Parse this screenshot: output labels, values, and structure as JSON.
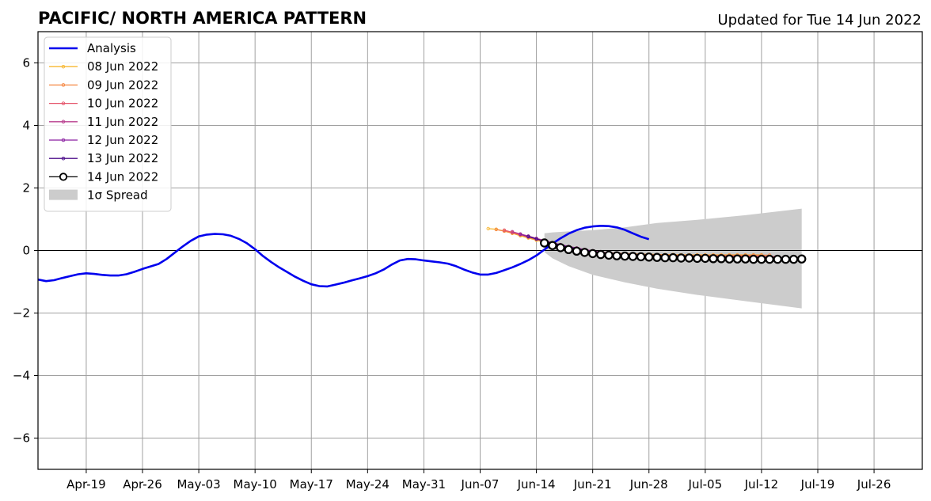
{
  "chart_data": {
    "type": "line",
    "title": "PACIFIC/ NORTH AMERICA PATTERN",
    "subtitle": "Updated for Tue 14 Jun 2022",
    "xlabel": "",
    "ylabel": "",
    "x_range": [
      "2022-04-13",
      "2022-08-01"
    ],
    "ylim": [
      -7,
      7
    ],
    "grid": true,
    "legend_position": "top-left",
    "xticks": [
      {
        "date": "2022-04-19",
        "label": "Apr-19"
      },
      {
        "date": "2022-04-26",
        "label": "Apr-26"
      },
      {
        "date": "2022-05-03",
        "label": "May-03"
      },
      {
        "date": "2022-05-10",
        "label": "May-10"
      },
      {
        "date": "2022-05-17",
        "label": "May-17"
      },
      {
        "date": "2022-05-24",
        "label": "May-24"
      },
      {
        "date": "2022-05-31",
        "label": "May-31"
      },
      {
        "date": "2022-06-07",
        "label": "Jun-07"
      },
      {
        "date": "2022-06-14",
        "label": "Jun-14"
      },
      {
        "date": "2022-06-21",
        "label": "Jun-21"
      },
      {
        "date": "2022-06-28",
        "label": "Jun-28"
      },
      {
        "date": "2022-07-05",
        "label": "Jul-05"
      },
      {
        "date": "2022-07-12",
        "label": "Jul-12"
      },
      {
        "date": "2022-07-19",
        "label": "Jul-19"
      },
      {
        "date": "2022-07-26",
        "label": "Jul-26"
      }
    ],
    "yticks": [
      {
        "value": 6,
        "label": "6"
      },
      {
        "value": 4,
        "label": "4"
      },
      {
        "value": 2,
        "label": "2"
      },
      {
        "value": 0,
        "label": "0"
      },
      {
        "value": -2,
        "label": "−2"
      },
      {
        "value": -4,
        "label": "−4"
      },
      {
        "value": -6,
        "label": "−6"
      }
    ],
    "analysis": {
      "name": "Analysis",
      "color": "#0000ee",
      "start_date": "2022-04-13",
      "values": [
        -0.93,
        -0.98,
        -0.95,
        -0.88,
        -0.82,
        -0.76,
        -0.73,
        -0.75,
        -0.78,
        -0.8,
        -0.8,
        -0.76,
        -0.68,
        -0.59,
        -0.51,
        -0.43,
        -0.27,
        -0.07,
        0.13,
        0.31,
        0.45,
        0.51,
        0.53,
        0.52,
        0.47,
        0.37,
        0.23,
        0.04,
        -0.18,
        -0.37,
        -0.54,
        -0.69,
        -0.84,
        -0.97,
        -1.08,
        -1.14,
        -1.15,
        -1.09,
        -1.03,
        -0.96,
        -0.89,
        -0.82,
        -0.73,
        -0.61,
        -0.45,
        -0.32,
        -0.27,
        -0.28,
        -0.32,
        -0.35,
        -0.38,
        -0.42,
        -0.5,
        -0.61,
        -0.7,
        -0.77,
        -0.77,
        -0.72,
        -0.63,
        -0.54,
        -0.43,
        -0.31,
        -0.16,
        0.03,
        0.22,
        0.39,
        0.54,
        0.65,
        0.73,
        0.77,
        0.79,
        0.78,
        0.74,
        0.66,
        0.55,
        0.44,
        0.36
      ]
    },
    "forecasts": [
      {
        "name": "08 Jun 2022",
        "color": "#f7b731",
        "start_date": "2022-06-08",
        "values": [
          0.7,
          0.68,
          0.62,
          0.55,
          0.47,
          0.4,
          0.33,
          0.26,
          0.19,
          0.13,
          0.08,
          0.03,
          -0.01,
          -0.04,
          -0.06,
          -0.08,
          -0.09,
          -0.1,
          -0.11,
          -0.12,
          -0.12,
          -0.13,
          -0.13,
          -0.13,
          -0.14,
          -0.14,
          -0.14,
          -0.14,
          -0.14,
          -0.14,
          -0.14,
          -0.14,
          -0.14,
          -0.14,
          -0.14
        ]
      },
      {
        "name": "09 Jun 2022",
        "color": "#f58742",
        "start_date": "2022-06-09",
        "values": [
          0.67,
          0.62,
          0.56,
          0.49,
          0.42,
          0.35,
          0.28,
          0.21,
          0.15,
          0.1,
          0.05,
          0.01,
          -0.02,
          -0.05,
          -0.07,
          -0.09,
          -0.1,
          -0.11,
          -0.12,
          -0.13,
          -0.13,
          -0.14,
          -0.14,
          -0.15,
          -0.15,
          -0.15,
          -0.15,
          -0.15,
          -0.15,
          -0.15,
          -0.15,
          -0.15,
          -0.15,
          -0.15,
          -0.15
        ]
      },
      {
        "name": "10 Jun 2022",
        "color": "#e5546a",
        "start_date": "2022-06-10",
        "values": [
          0.65,
          0.58,
          0.51,
          0.44,
          0.37,
          0.3,
          0.23,
          0.17,
          0.11,
          0.06,
          0.02,
          -0.02,
          -0.05,
          -0.08,
          -0.1,
          -0.12,
          -0.13,
          -0.14,
          -0.15,
          -0.16,
          -0.16,
          -0.17,
          -0.17,
          -0.17,
          -0.18,
          -0.18,
          -0.18,
          -0.18,
          -0.18,
          -0.18,
          -0.18,
          -0.18,
          -0.19,
          -0.19,
          -0.19
        ]
      },
      {
        "name": "11 Jun 2022",
        "color": "#b83e8e",
        "start_date": "2022-06-11",
        "values": [
          0.6,
          0.53,
          0.46,
          0.39,
          0.32,
          0.25,
          0.19,
          0.13,
          0.08,
          0.03,
          -0.01,
          -0.05,
          -0.08,
          -0.11,
          -0.13,
          -0.15,
          -0.16,
          -0.17,
          -0.18,
          -0.19,
          -0.19,
          -0.2,
          -0.2,
          -0.2,
          -0.21,
          -0.21,
          -0.21,
          -0.21,
          -0.21,
          -0.21,
          -0.21,
          -0.21,
          -0.22,
          -0.22,
          -0.22
        ]
      },
      {
        "name": "12 Jun 2022",
        "color": "#8a1fa0",
        "start_date": "2022-06-12",
        "values": [
          0.52,
          0.44,
          0.37,
          0.3,
          0.24,
          0.18,
          0.12,
          0.07,
          0.02,
          -0.02,
          -0.06,
          -0.09,
          -0.12,
          -0.14,
          -0.16,
          -0.17,
          -0.18,
          -0.19,
          -0.2,
          -0.21,
          -0.21,
          -0.22,
          -0.22,
          -0.22,
          -0.23,
          -0.23,
          -0.23,
          -0.23,
          -0.23,
          -0.23,
          -0.23,
          -0.23,
          -0.24,
          -0.24,
          -0.24
        ]
      },
      {
        "name": "13 Jun 2022",
        "color": "#4b0c8a",
        "start_date": "2022-06-13",
        "values": [
          0.45,
          0.37,
          0.3,
          0.23,
          0.17,
          0.11,
          0.06,
          0.01,
          -0.03,
          -0.07,
          -0.1,
          -0.13,
          -0.15,
          -0.17,
          -0.18,
          -0.19,
          -0.2,
          -0.21,
          -0.22,
          -0.22,
          -0.23,
          -0.23,
          -0.23,
          -0.24,
          -0.24,
          -0.24,
          -0.24,
          -0.24,
          -0.24,
          -0.24,
          -0.24,
          -0.25,
          -0.25,
          -0.25,
          -0.25
        ]
      }
    ],
    "current": {
      "name": "14 Jun 2022",
      "color": "#000000",
      "start_date": "2022-06-15",
      "values": [
        0.24,
        0.16,
        0.09,
        0.03,
        -0.02,
        -0.06,
        -0.1,
        -0.13,
        -0.15,
        -0.17,
        -0.18,
        -0.19,
        -0.2,
        -0.21,
        -0.22,
        -0.23,
        -0.23,
        -0.24,
        -0.24,
        -0.25,
        -0.25,
        -0.26,
        -0.26,
        -0.27,
        -0.27,
        -0.27,
        -0.28,
        -0.28,
        -0.28,
        -0.28,
        -0.28,
        -0.28,
        -0.27
      ]
    },
    "spread": {
      "name": "1σ Spread",
      "color": "#cccccc",
      "start_date": "2022-06-15",
      "end_date": "2022-07-17",
      "points": [
        {
          "day": 0,
          "upper": 0.55,
          "lower": -0.05
        },
        {
          "day": 1,
          "upper": 0.58,
          "lower": -0.25
        },
        {
          "day": 3,
          "upper": 0.61,
          "lower": -0.5
        },
        {
          "day": 6,
          "upper": 0.65,
          "lower": -0.78
        },
        {
          "day": 10,
          "upper": 0.74,
          "lower": -1.02
        },
        {
          "day": 14,
          "upper": 0.88,
          "lower": -1.22
        },
        {
          "day": 19,
          "upper": 0.98,
          "lower": -1.42
        },
        {
          "day": 25,
          "upper": 1.13,
          "lower": -1.62
        },
        {
          "day": 32,
          "upper": 1.34,
          "lower": -1.85
        }
      ]
    }
  }
}
